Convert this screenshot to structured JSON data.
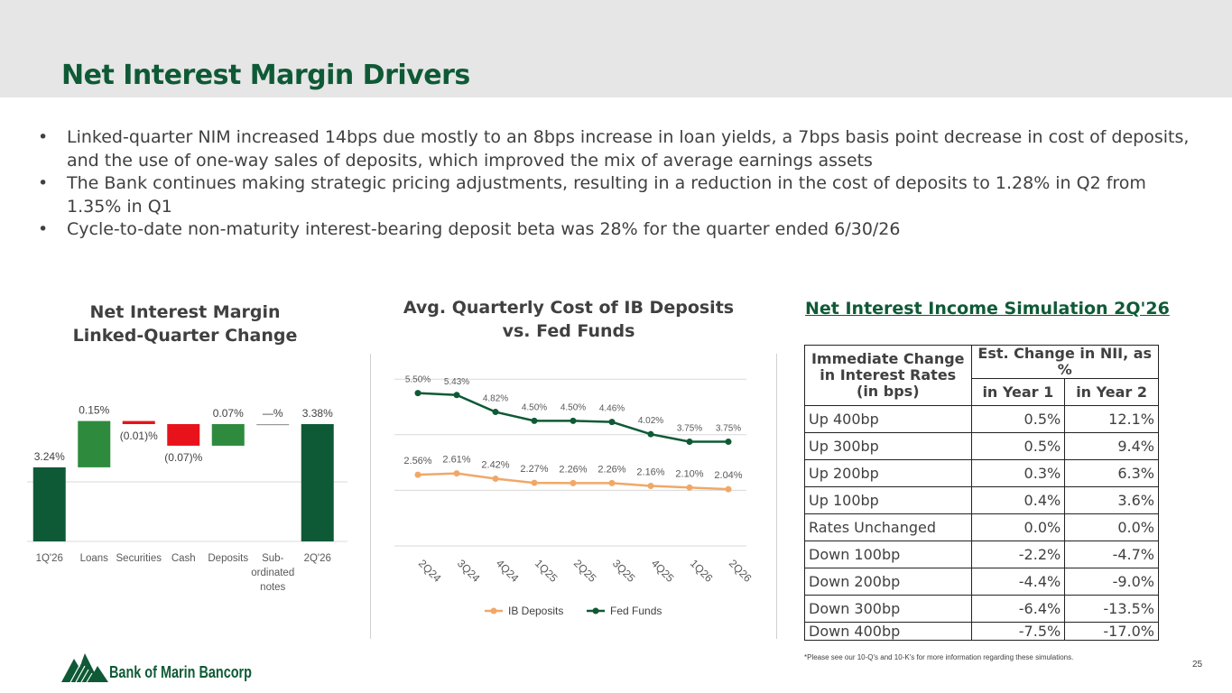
{
  "page": {
    "title": "Net Interest Margin Drivers",
    "page_number": "25",
    "bullets": [
      "Linked-quarter NIM increased 14bps due mostly to an 8bps increase in loan yields, a 7bps basis point decrease in cost of deposits, and the use of one-way sales of deposits, which improved the mix of average earnings assets",
      "The Bank continues making strategic pricing adjustments, resulting in a reduction in the cost of deposits to 1.28% in Q2 from 1.35% in Q1",
      "Cycle-to-date non-maturity interest-bearing deposit beta was 28% for the quarter ended 6/30/26"
    ],
    "bullet_glyph": "•",
    "logo_text": "Bank of Marin Bancorp",
    "colors": {
      "brand_green": "#0f5a36",
      "bar_green": "#2e8b3e",
      "bar_red": "#e8121b",
      "orange": "#f0a868"
    }
  },
  "chart_data": [
    {
      "type": "bar",
      "subtype": "waterfall",
      "title": "Net Interest Margin Linked-Quarter Change",
      "categories": [
        "1Q'26",
        "Loans",
        "Securities",
        "Cash",
        "Deposits",
        "Sub-ordinated notes",
        "2Q'26"
      ],
      "category_lines": [
        [
          "1Q'26"
        ],
        [
          "Loans"
        ],
        [
          "Securities"
        ],
        [
          "Cash"
        ],
        [
          "Deposits"
        ],
        [
          "Sub-",
          "ordinated",
          "notes"
        ],
        [
          "2Q'26"
        ]
      ],
      "values": [
        3.24,
        0.15,
        -0.01,
        -0.07,
        0.07,
        0.0,
        3.38
      ],
      "data_labels": [
        "3.24%",
        "0.15%",
        "(0.01)%",
        "(0.07)%",
        "0.07%",
        "—%",
        "3.38%"
      ],
      "kinds": [
        "total",
        "delta",
        "delta",
        "delta",
        "delta",
        "delta",
        "total"
      ],
      "gridlines": true
    },
    {
      "type": "line",
      "title": "Avg. Quarterly Cost of IB Deposits vs. Fed Funds",
      "x": [
        "2Q24",
        "3Q24",
        "4Q24",
        "1Q25",
        "2Q25",
        "3Q25",
        "4Q25",
        "1Q26",
        "2Q26"
      ],
      "series": [
        {
          "name": "IB Deposits",
          "color": "#f0a868",
          "values": [
            2.56,
            2.61,
            2.42,
            2.27,
            2.26,
            2.26,
            2.16,
            2.1,
            2.04
          ],
          "labels": [
            "2.56%",
            "2.61%",
            "2.42%",
            "2.27%",
            "2.26%",
            "2.26%",
            "2.16%",
            "2.10%",
            "2.04%"
          ]
        },
        {
          "name": "Fed Funds",
          "color": "#0f5a36",
          "values": [
            5.5,
            5.43,
            4.82,
            4.5,
            4.5,
            4.46,
            4.02,
            3.75,
            3.75
          ],
          "labels": [
            "5.50%",
            "5.43%",
            "4.82%",
            "4.50%",
            "4.50%",
            "4.46%",
            "4.02%",
            "3.75%",
            "3.75%"
          ]
        }
      ],
      "legend": "bottom",
      "gridlines": true
    },
    {
      "type": "table",
      "title": "Net Interest Income Simulation 2Q'26",
      "header_col1": "Immediate Change in Interest Rates (in bps)",
      "header_group": "Est. Change in NII, as %",
      "header_sub": [
        "in Year 1",
        "in Year 2"
      ],
      "rows": [
        [
          "Up 400bp",
          "0.5%",
          "12.1%"
        ],
        [
          "Up 300bp",
          "0.5%",
          "9.4%"
        ],
        [
          "Up 200bp",
          "0.3%",
          "6.3%"
        ],
        [
          "Up 100bp",
          "0.4%",
          "3.6%"
        ],
        [
          "Rates Unchanged",
          "0.0%",
          "0.0%"
        ],
        [
          "Down 100bp",
          "-2.2%",
          "-4.7%"
        ],
        [
          "Down 200bp",
          "-4.4%",
          "-9.0%"
        ],
        [
          "Down 300bp",
          "-6.4%",
          "-13.5%"
        ],
        [
          "Down 400bp",
          "-7.5%",
          "-17.0%"
        ]
      ],
      "footnote": "*Please see our 10-Q's and 10-K's for more information regarding these simulations."
    }
  ]
}
